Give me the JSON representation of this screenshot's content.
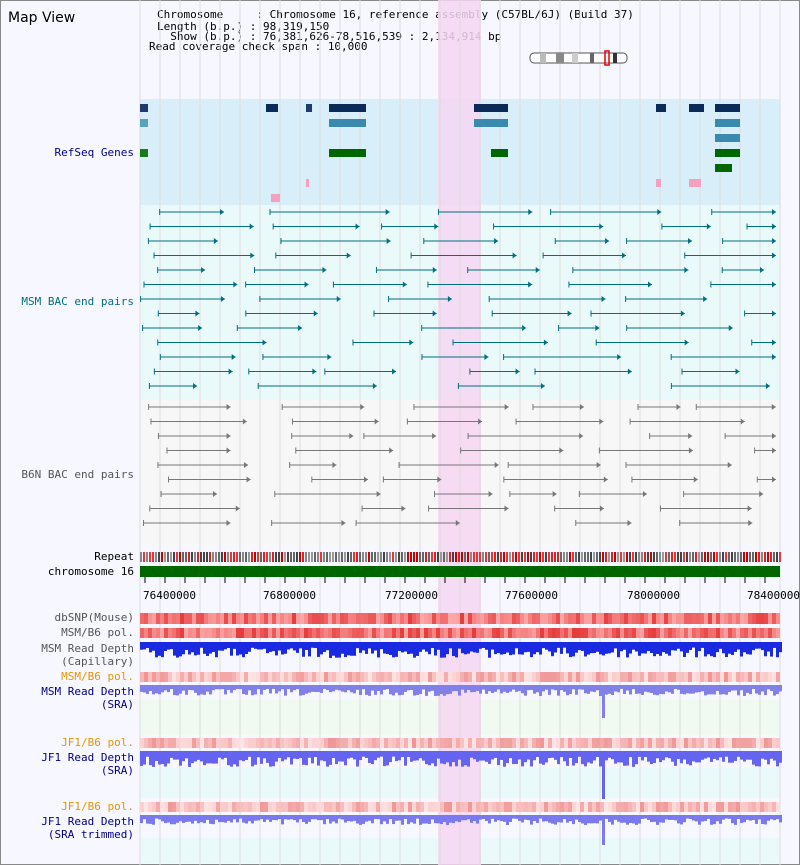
{
  "title": "Map View",
  "info": {
    "chromosome": {
      "label": "Chromosome     : ",
      "value": "Chromosome 16, reference assembly (C57BL/6J) (Build 37)"
    },
    "length": {
      "label": "Length (b.p.) : ",
      "value": "98,319,150"
    },
    "show": {
      "label": "  Show (b.p.) : ",
      "value": "76,381,626-78,516,539 : 2,134,914 bp"
    },
    "coverage": {
      "label": "Read coverage check span : ",
      "value": "10,000"
    }
  },
  "tracks": {
    "refseq": "RefSeq Genes",
    "msm_bac": "MSM BAC end pairs",
    "b6n_bac": "B6N BAC end pairs",
    "repeat": "Repeat",
    "chrom": "chromosome 16",
    "dbsnp": "dbSNP(Mouse)",
    "msm_pol": "MSM/B6 pol.",
    "msm_depth_cap_1": "MSM Read Depth",
    "msm_depth_cap_2": "(Capillary)",
    "msm_pol_sra": "MSM/B6 pol.",
    "msm_depth_sra_1": "MSM Read Depth",
    "msm_depth_sra_2": "(SRA)",
    "jf1_pol": "JF1/B6 pol.",
    "jf1_depth_1": "JF1 Read Depth",
    "jf1_depth_2": "(SRA)",
    "jf1_pol_trim": "JF1/B6 pol.",
    "jf1_trim_1": "JF1 Read Depth",
    "jf1_trim_2": "(SRA trimmed)"
  },
  "axis_ticks": [
    "76400000",
    "76800000",
    "77200000",
    "77600000",
    "78000000",
    "78400000"
  ],
  "colors": {
    "label_blue": "#00008b",
    "label_teal": "#006f7f",
    "label_gray": "#555555",
    "label_orange": "#e69500",
    "highlight": "#f6d6f2",
    "refseq_bg": "#d8effa",
    "bac_bg": "#eafafa",
    "chrom_green": "#006600"
  }
}
